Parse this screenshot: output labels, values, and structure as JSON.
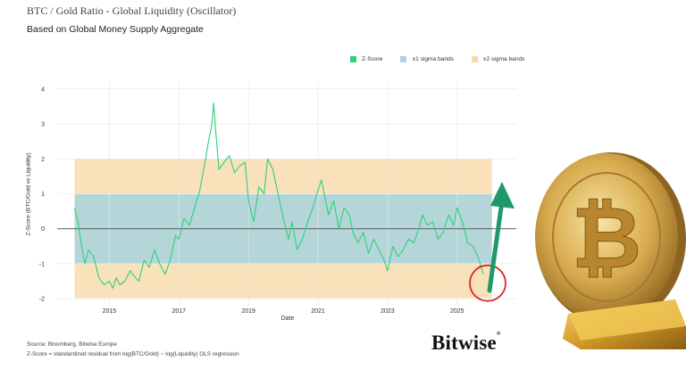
{
  "header": {
    "title": "BTC / Gold Ratio - Global Liquidity (Oscillator)",
    "subtitle": "Based on Global Money Supply Aggregate"
  },
  "legend": {
    "zscore_label": "Z-Score",
    "sigma1_label": "±1 sigma bands",
    "sigma2_label": "±2 sigma bands"
  },
  "footer": {
    "source": "Source: Bloomberg, Bitwise Europe",
    "note": "Z-Score = standardized residual from log(BTC/Gold) ~ log(Liquidity) OLS regression"
  },
  "brand": {
    "name": "Bitwise",
    "mark": "®"
  },
  "colors": {
    "line": "#2fd07a",
    "sigma1": "#a9d3de",
    "sigma2": "#f8d9a8",
    "zero_line": "#333333",
    "arrow": "#1e9a6a",
    "circle": "#d42a2a"
  },
  "chart_data": {
    "type": "line",
    "xlabel": "Date",
    "ylabel": "Z-Score (BTC/Gold vs Liquidity)",
    "ylim": [
      -2.2,
      4.2
    ],
    "xlim": [
      2013.5,
      2026.7
    ],
    "yticks": [
      -2,
      -1,
      0,
      1,
      2,
      3,
      4
    ],
    "xticks": [
      2015,
      2017,
      2019,
      2021,
      2023,
      2025
    ],
    "sigma1_band": [
      -1,
      1
    ],
    "sigma2_band": [
      -2,
      2
    ],
    "band_x_range": [
      2014.0,
      2026.0
    ],
    "grid": true,
    "legend_position": "top-right",
    "series": [
      {
        "name": "Z-Score",
        "x": [
          2014.0,
          2014.1,
          2014.2,
          2014.3,
          2014.4,
          2014.55,
          2014.7,
          2014.85,
          2015.0,
          2015.1,
          2015.2,
          2015.3,
          2015.45,
          2015.6,
          2015.75,
          2015.85,
          2016.0,
          2016.15,
          2016.3,
          2016.45,
          2016.6,
          2016.75,
          2016.9,
          2017.0,
          2017.15,
          2017.3,
          2017.45,
          2017.6,
          2017.75,
          2017.85,
          2017.95,
          2018.0,
          2018.05,
          2018.15,
          2018.3,
          2018.45,
          2018.6,
          2018.75,
          2018.9,
          2019.0,
          2019.15,
          2019.3,
          2019.45,
          2019.55,
          2019.7,
          2019.85,
          2020.0,
          2020.15,
          2020.25,
          2020.4,
          2020.55,
          2020.7,
          2020.85,
          2021.0,
          2021.1,
          2021.2,
          2021.3,
          2021.45,
          2021.6,
          2021.75,
          2021.9,
          2022.0,
          2022.15,
          2022.3,
          2022.45,
          2022.6,
          2022.75,
          2022.9,
          2023.0,
          2023.15,
          2023.3,
          2023.45,
          2023.6,
          2023.75,
          2023.9,
          2024.0,
          2024.15,
          2024.3,
          2024.45,
          2024.6,
          2024.75,
          2024.9,
          2025.0,
          2025.15,
          2025.3,
          2025.45,
          2025.6,
          2025.75
        ],
        "values": [
          0.6,
          0.2,
          -0.5,
          -1.0,
          -0.6,
          -0.8,
          -1.4,
          -1.6,
          -1.5,
          -1.7,
          -1.4,
          -1.6,
          -1.5,
          -1.2,
          -1.4,
          -1.5,
          -0.9,
          -1.1,
          -0.6,
          -1.0,
          -1.3,
          -0.9,
          -0.2,
          -0.3,
          0.3,
          0.1,
          0.6,
          1.1,
          1.9,
          2.5,
          3.0,
          3.6,
          2.9,
          1.7,
          1.9,
          2.1,
          1.6,
          1.8,
          1.9,
          0.8,
          0.2,
          1.2,
          1.0,
          2.0,
          1.7,
          1.0,
          0.3,
          -0.3,
          0.2,
          -0.6,
          -0.3,
          0.2,
          0.6,
          1.1,
          1.4,
          0.9,
          0.4,
          0.8,
          0.0,
          0.6,
          0.4,
          -0.1,
          -0.4,
          -0.1,
          -0.7,
          -0.3,
          -0.6,
          -0.9,
          -1.2,
          -0.5,
          -0.8,
          -0.6,
          -0.3,
          -0.4,
          0.0,
          0.4,
          0.1,
          0.2,
          -0.3,
          -0.1,
          0.4,
          0.1,
          0.6,
          0.2,
          -0.4,
          -0.5,
          -0.8,
          -1.3
        ]
      }
    ]
  }
}
